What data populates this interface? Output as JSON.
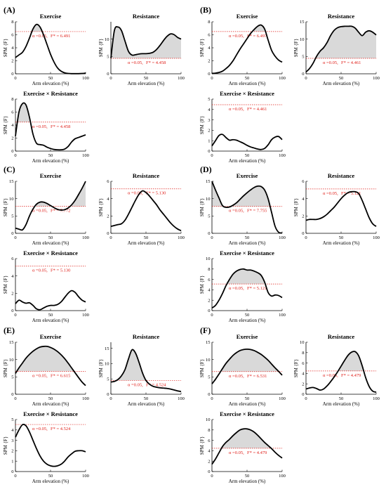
{
  "figure": {
    "x_label": "Arm elevation (%)",
    "y_label": "SPM {F}",
    "alpha_label": "α =0.05,",
    "colors": {
      "curve": "#000000",
      "threshold": "#e0201b",
      "supra": "#d9d9d9"
    }
  },
  "chart_data": [
    {
      "panel": "(A)",
      "title": "Exercise",
      "type": "line",
      "ylim": [
        0,
        8
      ],
      "yticks": [
        0,
        2,
        4,
        6,
        8
      ],
      "xticks": [
        0,
        50,
        100
      ],
      "threshold": 6.491,
      "threshold_label": "F* = 6.491",
      "x": [
        0,
        5,
        10,
        15,
        20,
        25,
        30,
        35,
        40,
        45,
        50,
        55,
        60,
        65,
        70,
        75,
        80,
        85,
        90,
        95,
        100
      ],
      "y": [
        2.5,
        2.9,
        3.3,
        4.2,
        5.5,
        6.9,
        7.6,
        7.2,
        6.0,
        4.5,
        3.0,
        1.8,
        0.9,
        0.4,
        0.15,
        0.05,
        0.02,
        0.02,
        0.02,
        0.05,
        0.1
      ]
    },
    {
      "panel": "(A)",
      "title": "Resistance",
      "type": "line",
      "ylim": [
        0,
        15
      ],
      "yticks": [
        0,
        5,
        10
      ],
      "xticks": [
        0,
        50,
        100
      ],
      "threshold": 4.458,
      "threshold_label": "F* = 4.458",
      "x": [
        0,
        5,
        10,
        15,
        20,
        25,
        30,
        35,
        40,
        45,
        50,
        55,
        60,
        65,
        70,
        75,
        80,
        85,
        90,
        95,
        100
      ],
      "y": [
        4.5,
        12.5,
        13.5,
        12.5,
        9.5,
        6.5,
        5.4,
        5.5,
        5.7,
        5.8,
        5.8,
        5.9,
        6.2,
        7.0,
        8.2,
        9.6,
        10.8,
        11.5,
        11.3,
        10.5,
        10.0
      ]
    },
    {
      "panel": "(A)",
      "title": "Exercise × Resistance",
      "type": "line",
      "ylim": [
        0,
        8
      ],
      "yticks": [
        0,
        2,
        4,
        6,
        8
      ],
      "xticks": [
        0,
        50,
        100
      ],
      "threshold": 4.458,
      "threshold_label": "F* = 4.458",
      "x": [
        0,
        5,
        10,
        15,
        20,
        25,
        30,
        35,
        40,
        45,
        50,
        55,
        60,
        65,
        70,
        75,
        80,
        85,
        90,
        95,
        100
      ],
      "y": [
        2.3,
        6.0,
        7.3,
        7.1,
        5.2,
        2.6,
        1.2,
        1.0,
        0.9,
        0.6,
        0.4,
        0.25,
        0.2,
        0.2,
        0.3,
        0.7,
        1.4,
        1.9,
        2.1,
        2.3,
        2.5
      ]
    },
    {
      "panel": "(B)",
      "title": "Exercise",
      "type": "line",
      "ylim": [
        0,
        8
      ],
      "yticks": [
        0,
        2,
        4,
        6,
        8
      ],
      "xticks": [
        0,
        50,
        100
      ],
      "threshold": 6.497,
      "threshold_label": "F* = 6.497",
      "x": [
        0,
        5,
        10,
        15,
        20,
        25,
        30,
        35,
        40,
        45,
        50,
        55,
        60,
        65,
        70,
        75,
        80,
        85,
        90,
        95,
        100
      ],
      "y": [
        0.05,
        0.1,
        0.2,
        0.4,
        0.8,
        1.3,
        2.0,
        2.9,
        3.8,
        4.6,
        5.4,
        6.2,
        6.8,
        7.3,
        7.5,
        6.9,
        5.2,
        3.6,
        2.7,
        2.1,
        1.8
      ]
    },
    {
      "panel": "(B)",
      "title": "Resistance",
      "type": "line",
      "ylim": [
        0,
        15
      ],
      "yticks": [
        0,
        5,
        10,
        15
      ],
      "xticks": [
        0,
        50,
        100
      ],
      "threshold": 4.461,
      "threshold_label": "F* = 4.461",
      "x": [
        0,
        5,
        10,
        15,
        20,
        25,
        30,
        35,
        40,
        45,
        50,
        55,
        60,
        65,
        70,
        75,
        80,
        85,
        90,
        95,
        100
      ],
      "y": [
        0.5,
        1.5,
        3.0,
        5.0,
        6.5,
        7.5,
        9.0,
        11.0,
        12.5,
        13.3,
        13.6,
        13.7,
        13.7,
        13.7,
        13.2,
        12.0,
        11.0,
        12.0,
        12.4,
        12.0,
        11.2
      ]
    },
    {
      "panel": "(B)",
      "title": "Exercise × Resistance",
      "type": "line",
      "ylim": [
        0,
        5
      ],
      "yticks": [
        0,
        1,
        2,
        3,
        4,
        5
      ],
      "xticks": [
        0,
        50,
        100
      ],
      "threshold": 4.461,
      "threshold_label": "F* = 4.461",
      "x": [
        0,
        5,
        10,
        15,
        20,
        25,
        30,
        35,
        40,
        45,
        50,
        55,
        60,
        65,
        70,
        75,
        80,
        85,
        90,
        95,
        100
      ],
      "y": [
        0.5,
        1.0,
        1.5,
        1.6,
        1.3,
        1.05,
        1.1,
        1.05,
        0.9,
        0.75,
        0.55,
        0.4,
        0.3,
        0.2,
        0.15,
        0.25,
        0.6,
        1.1,
        1.35,
        1.4,
        1.1
      ]
    },
    {
      "panel": "(C)",
      "title": "Exercise",
      "type": "line",
      "ylim": [
        0,
        15
      ],
      "yticks": [
        0,
        5,
        10,
        15
      ],
      "xticks": [
        0,
        50,
        100
      ],
      "threshold": 7.772,
      "threshold_label": "F* = 7.772",
      "x": [
        0,
        5,
        10,
        15,
        20,
        25,
        30,
        35,
        40,
        45,
        50,
        55,
        60,
        65,
        70,
        75,
        80,
        85,
        90,
        95,
        100
      ],
      "y": [
        1.5,
        1.2,
        1.0,
        2.5,
        5.0,
        7.0,
        8.4,
        9.0,
        9.0,
        8.6,
        8.0,
        7.4,
        6.9,
        6.7,
        6.8,
        7.3,
        8.2,
        9.5,
        11.2,
        13.0,
        15.0
      ]
    },
    {
      "panel": "(C)",
      "title": "Resistance",
      "type": "line",
      "ylim": [
        0,
        6
      ],
      "yticks": [
        0,
        2,
        4,
        6
      ],
      "xticks": [
        0,
        50,
        100
      ],
      "threshold": 5.13,
      "threshold_label": "F* = 5.130",
      "x": [
        0,
        5,
        10,
        15,
        20,
        25,
        30,
        35,
        40,
        45,
        50,
        55,
        60,
        65,
        70,
        75,
        80,
        85,
        90,
        95,
        100
      ],
      "y": [
        0.8,
        0.9,
        1.0,
        1.1,
        1.5,
        2.2,
        3.0,
        3.8,
        4.5,
        4.9,
        4.7,
        4.3,
        3.8,
        3.3,
        2.7,
        2.2,
        1.7,
        1.2,
        0.8,
        0.5,
        0.3
      ]
    },
    {
      "panel": "(C)",
      "title": "Exercise × Resistance",
      "type": "line",
      "ylim": [
        0,
        6
      ],
      "yticks": [
        0,
        2,
        4,
        6
      ],
      "xticks": [
        0,
        50,
        100
      ],
      "threshold": 5.13,
      "threshold_label": "F* = 5.130",
      "x": [
        0,
        5,
        10,
        15,
        20,
        25,
        30,
        35,
        40,
        45,
        50,
        55,
        60,
        65,
        70,
        75,
        80,
        85,
        90,
        95,
        100
      ],
      "y": [
        0.8,
        1.2,
        1.0,
        0.85,
        0.9,
        0.6,
        0.2,
        0.1,
        0.3,
        0.5,
        0.6,
        0.6,
        0.7,
        1.0,
        1.5,
        2.0,
        2.3,
        2.1,
        1.6,
        1.2,
        1.0
      ]
    },
    {
      "panel": "(D)",
      "title": "Exercise",
      "type": "line",
      "ylim": [
        0,
        15
      ],
      "yticks": [
        0,
        5,
        10,
        15
      ],
      "xticks": [
        0,
        50,
        100
      ],
      "threshold": 7.755,
      "threshold_label": "F* = 7.755",
      "x": [
        0,
        5,
        10,
        15,
        20,
        25,
        30,
        35,
        40,
        45,
        50,
        55,
        60,
        65,
        70,
        75,
        80,
        85,
        90,
        95,
        100
      ],
      "y": [
        15.0,
        12.5,
        10.2,
        8.0,
        7.5,
        7.6,
        8.1,
        8.8,
        9.8,
        10.8,
        11.7,
        12.5,
        13.2,
        13.6,
        13.5,
        12.5,
        10.0,
        6.0,
        2.0,
        0.3,
        0.1
      ]
    },
    {
      "panel": "(D)",
      "title": "Resistance",
      "type": "line",
      "ylim": [
        0,
        6
      ],
      "yticks": [
        0,
        2,
        4,
        6
      ],
      "xticks": [
        0,
        50,
        100
      ],
      "threshold": 5.121,
      "threshold_label": "F* = 5.121",
      "x": [
        0,
        5,
        10,
        15,
        20,
        25,
        30,
        35,
        40,
        45,
        50,
        55,
        60,
        65,
        70,
        75,
        80,
        85,
        90,
        95,
        100
      ],
      "y": [
        1.5,
        1.6,
        1.6,
        1.6,
        1.7,
        1.9,
        2.2,
        2.6,
        3.0,
        3.5,
        4.0,
        4.4,
        4.7,
        4.8,
        4.8,
        4.6,
        3.8,
        2.8,
        1.8,
        1.1,
        0.8
      ]
    },
    {
      "panel": "(D)",
      "title": "Exercise × Resistance",
      "type": "line",
      "ylim": [
        0,
        10
      ],
      "yticks": [
        0,
        2,
        4,
        6,
        8,
        10
      ],
      "xticks": [
        0,
        50,
        100
      ],
      "threshold": 5.121,
      "threshold_label": "F* = 5.121",
      "x": [
        0,
        5,
        10,
        15,
        20,
        25,
        30,
        35,
        40,
        45,
        50,
        55,
        60,
        65,
        70,
        75,
        80,
        85,
        90,
        95,
        100
      ],
      "y": [
        0.5,
        1.0,
        2.0,
        3.3,
        4.8,
        6.0,
        7.0,
        7.6,
        7.9,
        8.0,
        7.8,
        7.8,
        7.6,
        7.3,
        6.8,
        5.5,
        3.5,
        2.8,
        3.0,
        2.9,
        2.5
      ]
    },
    {
      "panel": "(E)",
      "title": "Exercise",
      "type": "line",
      "ylim": [
        0,
        15
      ],
      "yticks": [
        0,
        5,
        10,
        15
      ],
      "xticks": [
        0,
        50,
        100
      ],
      "threshold": 6.615,
      "threshold_label": "F* = 6.615",
      "x": [
        0,
        5,
        10,
        15,
        20,
        25,
        30,
        35,
        40,
        45,
        50,
        55,
        60,
        65,
        70,
        75,
        80,
        85,
        90,
        95,
        100
      ],
      "y": [
        6.0,
        7.6,
        9.0,
        10.4,
        11.5,
        12.4,
        13.1,
        13.6,
        13.8,
        13.8,
        13.5,
        13.0,
        12.3,
        11.4,
        10.3,
        9.0,
        7.6,
        6.2,
        4.8,
        3.5,
        2.5
      ]
    },
    {
      "panel": "(E)",
      "title": "Resistance",
      "type": "line",
      "ylim": [
        0,
        17
      ],
      "yticks": [
        0,
        5,
        10,
        15
      ],
      "xticks": [
        0,
        50,
        100
      ],
      "threshold": 4.524,
      "threshold_label": "F* = 4.524",
      "x": [
        0,
        5,
        10,
        15,
        20,
        25,
        30,
        35,
        40,
        45,
        50,
        55,
        60,
        65,
        70,
        75,
        80,
        85,
        90,
        95,
        100
      ],
      "y": [
        4.0,
        4.2,
        4.8,
        6.0,
        8.0,
        11.5,
        14.5,
        13.5,
        10.5,
        7.0,
        4.5,
        3.3,
        2.6,
        2.3,
        2.1,
        2.0,
        1.9,
        1.7,
        1.4,
        1.1,
        0.9
      ]
    },
    {
      "panel": "(E)",
      "title": "Exercise × Resistance",
      "type": "line",
      "ylim": [
        0,
        5
      ],
      "yticks": [
        0,
        1,
        2,
        3,
        4,
        5
      ],
      "xticks": [
        0,
        50,
        100
      ],
      "threshold": 4.524,
      "threshold_label": "F* = 4.524",
      "x": [
        0,
        5,
        10,
        15,
        20,
        25,
        30,
        35,
        40,
        45,
        50,
        55,
        60,
        65,
        70,
        75,
        80,
        85,
        90,
        95,
        100
      ],
      "y": [
        3.3,
        4.0,
        4.5,
        4.4,
        3.8,
        3.0,
        2.2,
        1.5,
        1.0,
        0.7,
        0.55,
        0.5,
        0.55,
        0.7,
        1.0,
        1.4,
        1.7,
        1.95,
        2.0,
        2.0,
        1.9
      ]
    },
    {
      "panel": "(F)",
      "title": "Exercise",
      "type": "line",
      "ylim": [
        0,
        15
      ],
      "yticks": [
        0,
        5,
        10,
        15
      ],
      "xticks": [
        0,
        50,
        100
      ],
      "threshold": 6.531,
      "threshold_label": "F* = 6.531",
      "x": [
        0,
        5,
        10,
        15,
        20,
        25,
        30,
        35,
        40,
        45,
        50,
        55,
        60,
        65,
        70,
        75,
        80,
        85,
        90,
        95,
        100
      ],
      "y": [
        3.0,
        4.3,
        5.8,
        7.4,
        8.9,
        10.1,
        11.2,
        12.0,
        12.6,
        12.9,
        13.0,
        12.9,
        12.6,
        12.1,
        11.5,
        10.7,
        9.8,
        8.7,
        7.6,
        6.6,
        5.5
      ]
    },
    {
      "panel": "(F)",
      "title": "Resistance",
      "type": "line",
      "ylim": [
        0,
        10
      ],
      "yticks": [
        0,
        2,
        4,
        6,
        8,
        10
      ],
      "xticks": [
        0,
        50,
        100
      ],
      "threshold": 4.479,
      "threshold_label": "F* = 4.479",
      "x": [
        0,
        5,
        10,
        15,
        20,
        25,
        30,
        35,
        40,
        45,
        50,
        55,
        60,
        65,
        70,
        75,
        80,
        85,
        90,
        95,
        100
      ],
      "y": [
        1.0,
        1.2,
        1.3,
        1.1,
        0.8,
        1.0,
        1.6,
        2.4,
        3.3,
        4.3,
        5.4,
        6.5,
        7.5,
        8.1,
        8.2,
        7.4,
        5.5,
        3.2,
        1.5,
        0.6,
        0.4
      ]
    },
    {
      "panel": "(F)",
      "title": "Exercise × Resistance",
      "type": "line",
      "ylim": [
        0,
        10
      ],
      "yticks": [
        0,
        2,
        4,
        6,
        8,
        10
      ],
      "xticks": [
        0,
        50,
        100
      ],
      "threshold": 4.479,
      "threshold_label": "F* = 4.479",
      "x": [
        0,
        5,
        10,
        15,
        20,
        25,
        30,
        35,
        40,
        45,
        50,
        55,
        60,
        65,
        70,
        75,
        80,
        85,
        90,
        95,
        100
      ],
      "y": [
        1.4,
        2.4,
        3.6,
        4.8,
        5.6,
        6.2,
        6.9,
        7.5,
        8.0,
        8.2,
        8.2,
        8.0,
        7.6,
        7.0,
        6.3,
        5.6,
        5.0,
        4.4,
        3.7,
        3.1,
        2.6
      ]
    }
  ]
}
